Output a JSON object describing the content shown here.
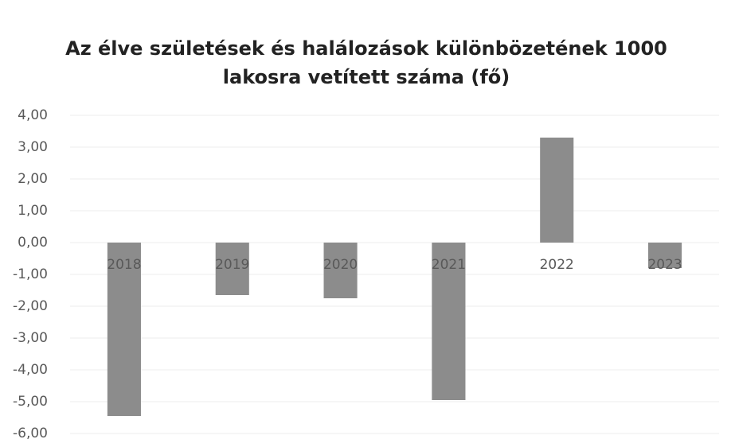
{
  "chart_data": {
    "type": "bar",
    "title": "Az élve születések és halálozások különbözetének 1000 lakosra vetített száma (fő)",
    "categories": [
      "2018",
      "2019",
      "2020",
      "2021",
      "2022",
      "2023"
    ],
    "values": [
      -5.45,
      -1.65,
      -1.75,
      -4.95,
      3.3,
      -0.8
    ],
    "color": "#8c8c8c",
    "ylim": [
      -6,
      4
    ],
    "yticks": [
      {
        "value": 4,
        "label": "4,00"
      },
      {
        "value": 3,
        "label": "3,00"
      },
      {
        "value": 2,
        "label": "2,00"
      },
      {
        "value": 1,
        "label": "1,00"
      },
      {
        "value": 0,
        "label": "0,00"
      },
      {
        "value": -1,
        "label": "-1,00"
      },
      {
        "value": -2,
        "label": "-2,00"
      },
      {
        "value": -3,
        "label": "-3,00"
      },
      {
        "value": -4,
        "label": "-4,00"
      },
      {
        "value": -5,
        "label": "-5,00"
      },
      {
        "value": -6,
        "label": "-6,00"
      }
    ],
    "grid": true
  }
}
